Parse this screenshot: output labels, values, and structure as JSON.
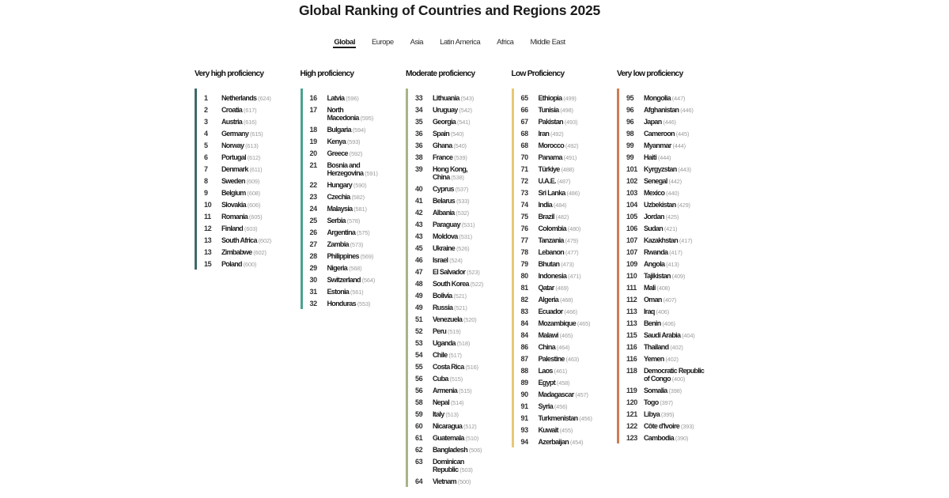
{
  "title": "Global Ranking of Countries and Regions 2025",
  "tabs": [
    {
      "label": "Global",
      "active": true
    },
    {
      "label": "Europe",
      "active": false
    },
    {
      "label": "Asia",
      "active": false
    },
    {
      "label": "Latin America",
      "active": false
    },
    {
      "label": "Africa",
      "active": false
    },
    {
      "label": "Middle East",
      "active": false
    }
  ],
  "columns": [
    {
      "header": "Very high proficiency",
      "band_color": "#3b6a68",
      "entries": [
        {
          "rank": "1",
          "name": "Netherlands",
          "score": "624"
        },
        {
          "rank": "2",
          "name": "Croatia",
          "score": "617"
        },
        {
          "rank": "3",
          "name": "Austria",
          "score": "616"
        },
        {
          "rank": "4",
          "name": "Germany",
          "score": "615"
        },
        {
          "rank": "5",
          "name": "Norway",
          "score": "613"
        },
        {
          "rank": "6",
          "name": "Portugal",
          "score": "612"
        },
        {
          "rank": "7",
          "name": "Denmark",
          "score": "611"
        },
        {
          "rank": "8",
          "name": "Sweden",
          "score": "609"
        },
        {
          "rank": "9",
          "name": "Belgium",
          "score": "608"
        },
        {
          "rank": "10",
          "name": "Slovakia",
          "score": "606"
        },
        {
          "rank": "11",
          "name": "Romania",
          "score": "605"
        },
        {
          "rank": "12",
          "name": "Finland",
          "score": "603"
        },
        {
          "rank": "13",
          "name": "South Africa",
          "score": "602"
        },
        {
          "rank": "13",
          "name": "Zimbabwe",
          "score": "602"
        },
        {
          "rank": "15",
          "name": "Poland",
          "score": "600"
        }
      ]
    },
    {
      "header": "High proficiency",
      "band_color": "#4aa28e",
      "entries": [
        {
          "rank": "16",
          "name": "Latvia",
          "score": "596"
        },
        {
          "rank": "17",
          "name": "North\nMacedonia",
          "score": "595"
        },
        {
          "rank": "18",
          "name": "Bulgaria",
          "score": "594"
        },
        {
          "rank": "19",
          "name": "Kenya",
          "score": "593"
        },
        {
          "rank": "20",
          "name": "Greece",
          "score": "592"
        },
        {
          "rank": "21",
          "name": "Bosnia and\nHerzegovina",
          "score": "591"
        },
        {
          "rank": "22",
          "name": "Hungary",
          "score": "590"
        },
        {
          "rank": "23",
          "name": "Czechia",
          "score": "582"
        },
        {
          "rank": "24",
          "name": "Malaysia",
          "score": "581"
        },
        {
          "rank": "25",
          "name": "Serbia",
          "score": "578"
        },
        {
          "rank": "26",
          "name": "Argentina",
          "score": "575"
        },
        {
          "rank": "27",
          "name": "Zambia",
          "score": "573"
        },
        {
          "rank": "28",
          "name": "Philippines",
          "score": "569"
        },
        {
          "rank": "29",
          "name": "Nigeria",
          "score": "568"
        },
        {
          "rank": "30",
          "name": "Switzerland",
          "score": "564"
        },
        {
          "rank": "31",
          "name": "Estonia",
          "score": "561"
        },
        {
          "rank": "32",
          "name": "Honduras",
          "score": "553"
        }
      ]
    },
    {
      "header": "Moderate proficiency",
      "band_color": "#a6b583",
      "entries": [
        {
          "rank": "33",
          "name": "Lithuania",
          "score": "543"
        },
        {
          "rank": "34",
          "name": "Uruguay",
          "score": "542"
        },
        {
          "rank": "35",
          "name": "Georgia",
          "score": "541"
        },
        {
          "rank": "36",
          "name": "Spain",
          "score": "540"
        },
        {
          "rank": "36",
          "name": "Ghana",
          "score": "540"
        },
        {
          "rank": "38",
          "name": "France",
          "score": "539"
        },
        {
          "rank": "39",
          "name": "Hong Kong,\nChina",
          "score": "538"
        },
        {
          "rank": "40",
          "name": "Cyprus",
          "score": "537"
        },
        {
          "rank": "41",
          "name": "Belarus",
          "score": "533"
        },
        {
          "rank": "42",
          "name": "Albania",
          "score": "532"
        },
        {
          "rank": "43",
          "name": "Paraguay",
          "score": "531"
        },
        {
          "rank": "43",
          "name": "Moldova",
          "score": "531"
        },
        {
          "rank": "45",
          "name": "Ukraine",
          "score": "526"
        },
        {
          "rank": "46",
          "name": "Israel",
          "score": "524"
        },
        {
          "rank": "47",
          "name": "El Salvador",
          "score": "523"
        },
        {
          "rank": "48",
          "name": "South Korea",
          "score": "522"
        },
        {
          "rank": "49",
          "name": "Bolivia",
          "score": "521"
        },
        {
          "rank": "49",
          "name": "Russia",
          "score": "521"
        },
        {
          "rank": "51",
          "name": "Venezuela",
          "score": "520"
        },
        {
          "rank": "52",
          "name": "Peru",
          "score": "519"
        },
        {
          "rank": "53",
          "name": "Uganda",
          "score": "518"
        },
        {
          "rank": "54",
          "name": "Chile",
          "score": "517"
        },
        {
          "rank": "55",
          "name": "Costa Rica",
          "score": "516"
        },
        {
          "rank": "56",
          "name": "Cuba",
          "score": "515"
        },
        {
          "rank": "56",
          "name": "Armenia",
          "score": "515"
        },
        {
          "rank": "58",
          "name": "Nepal",
          "score": "514"
        },
        {
          "rank": "59",
          "name": "Italy",
          "score": "513"
        },
        {
          "rank": "60",
          "name": "Nicaragua",
          "score": "512"
        },
        {
          "rank": "61",
          "name": "Guatemala",
          "score": "510"
        },
        {
          "rank": "62",
          "name": "Bangladesh",
          "score": "506"
        },
        {
          "rank": "63",
          "name": "Dominican\nRepublic",
          "score": "503"
        },
        {
          "rank": "64",
          "name": "Vietnam",
          "score": "500"
        }
      ]
    },
    {
      "header": "Low Proficiency",
      "band_color": "#e6c873",
      "entries": [
        {
          "rank": "65",
          "name": "Ethiopia",
          "score": "499"
        },
        {
          "rank": "66",
          "name": "Tunisia",
          "score": "498"
        },
        {
          "rank": "67",
          "name": "Pakistan",
          "score": "493"
        },
        {
          "rank": "68",
          "name": "Iran",
          "score": "492"
        },
        {
          "rank": "68",
          "name": "Morocco",
          "score": "492"
        },
        {
          "rank": "70",
          "name": "Panama",
          "score": "491"
        },
        {
          "rank": "71",
          "name": "Türkiye",
          "score": "488"
        },
        {
          "rank": "72",
          "name": "U.A.E.",
          "score": "487"
        },
        {
          "rank": "73",
          "name": "Sri Lanka",
          "score": "486"
        },
        {
          "rank": "74",
          "name": "India",
          "score": "484"
        },
        {
          "rank": "75",
          "name": "Brazil",
          "score": "482"
        },
        {
          "rank": "76",
          "name": "Colombia",
          "score": "480"
        },
        {
          "rank": "77",
          "name": "Tanzania",
          "score": "479"
        },
        {
          "rank": "78",
          "name": "Lebanon",
          "score": "477"
        },
        {
          "rank": "79",
          "name": "Bhutan",
          "score": "473"
        },
        {
          "rank": "80",
          "name": "Indonesia",
          "score": "471"
        },
        {
          "rank": "81",
          "name": "Qatar",
          "score": "469"
        },
        {
          "rank": "82",
          "name": "Algeria",
          "score": "468"
        },
        {
          "rank": "83",
          "name": "Ecuador",
          "score": "466"
        },
        {
          "rank": "84",
          "name": "Mozambique",
          "score": "465"
        },
        {
          "rank": "84",
          "name": "Malawi",
          "score": "465"
        },
        {
          "rank": "86",
          "name": "China",
          "score": "464"
        },
        {
          "rank": "87",
          "name": "Palestine",
          "score": "463"
        },
        {
          "rank": "88",
          "name": "Laos",
          "score": "461"
        },
        {
          "rank": "89",
          "name": "Egypt",
          "score": "458"
        },
        {
          "rank": "90",
          "name": "Madagascar",
          "score": "457"
        },
        {
          "rank": "91",
          "name": "Syria",
          "score": "456"
        },
        {
          "rank": "91",
          "name": "Turkmenistan",
          "score": "456"
        },
        {
          "rank": "93",
          "name": "Kuwait",
          "score": "455"
        },
        {
          "rank": "94",
          "name": "Azerbaijan",
          "score": "454"
        }
      ]
    },
    {
      "header": "Very low proficiency",
      "band_color": "#cd7c52",
      "entries": [
        {
          "rank": "95",
          "name": "Mongolia",
          "score": "447"
        },
        {
          "rank": "96",
          "name": "Afghanistan",
          "score": "446"
        },
        {
          "rank": "96",
          "name": "Japan",
          "score": "446"
        },
        {
          "rank": "98",
          "name": "Cameroon",
          "score": "445"
        },
        {
          "rank": "99",
          "name": "Myanmar",
          "score": "444"
        },
        {
          "rank": "99",
          "name": "Haiti",
          "score": "444"
        },
        {
          "rank": "101",
          "name": "Kyrgyzstan",
          "score": "443"
        },
        {
          "rank": "102",
          "name": "Senegal",
          "score": "442"
        },
        {
          "rank": "103",
          "name": "Mexico",
          "score": "440"
        },
        {
          "rank": "104",
          "name": "Uzbekistan",
          "score": "429"
        },
        {
          "rank": "105",
          "name": "Jordan",
          "score": "425"
        },
        {
          "rank": "106",
          "name": "Sudan",
          "score": "421"
        },
        {
          "rank": "107",
          "name": "Kazakhstan",
          "score": "417"
        },
        {
          "rank": "107",
          "name": "Rwanda",
          "score": "417"
        },
        {
          "rank": "109",
          "name": "Angola",
          "score": "413"
        },
        {
          "rank": "110",
          "name": "Tajikistan",
          "score": "409"
        },
        {
          "rank": "111",
          "name": "Mali",
          "score": "408"
        },
        {
          "rank": "112",
          "name": "Oman",
          "score": "407"
        },
        {
          "rank": "113",
          "name": "Iraq",
          "score": "406"
        },
        {
          "rank": "113",
          "name": "Benin",
          "score": "406"
        },
        {
          "rank": "115",
          "name": "Saudi Arabia",
          "score": "404"
        },
        {
          "rank": "116",
          "name": "Thailand",
          "score": "402"
        },
        {
          "rank": "116",
          "name": "Yemen",
          "score": "402"
        },
        {
          "rank": "118",
          "name": "Democratic Republic\nof Congo",
          "score": "400"
        },
        {
          "rank": "119",
          "name": "Somalia",
          "score": "398"
        },
        {
          "rank": "120",
          "name": "Togo",
          "score": "397"
        },
        {
          "rank": "121",
          "name": "Libya",
          "score": "395"
        },
        {
          "rank": "122",
          "name": "Côte d'Ivoire",
          "score": "393"
        },
        {
          "rank": "123",
          "name": "Cambodia",
          "score": "390"
        }
      ]
    }
  ]
}
